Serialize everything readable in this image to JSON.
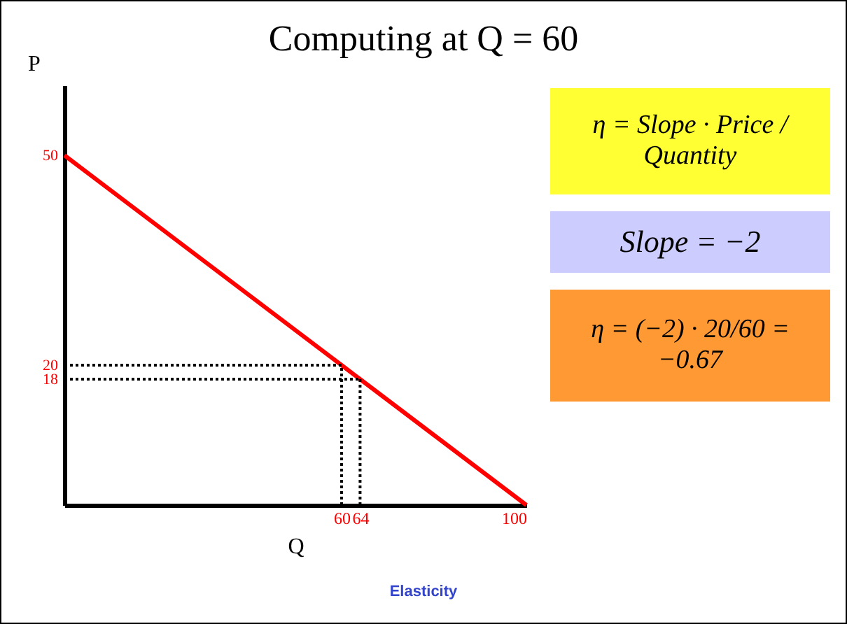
{
  "chart_data": {
    "type": "line",
    "title": "Computing at Q = 60",
    "xlabel": "Q",
    "ylabel": "P",
    "x": [
      0,
      60,
      64,
      100
    ],
    "series": [
      {
        "color": "#ff0000",
        "values": [
          50,
          20,
          18,
          0
        ]
      }
    ],
    "xlim": [
      0,
      100
    ],
    "ylim": [
      0,
      60
    ],
    "xticks": [
      60,
      64,
      100
    ],
    "yticks": [
      18,
      20,
      50
    ],
    "ref_lines": [
      {
        "axis": "y",
        "value": 20,
        "line_style": "dotted",
        "color": "#000000"
      },
      {
        "axis": "y",
        "value": 18,
        "line_style": "dotted",
        "color": "#000000"
      },
      {
        "axis": "x",
        "value": 60,
        "line_style": "dotted",
        "color": "#000000"
      },
      {
        "axis": "x",
        "value": 64,
        "line_style": "dotted",
        "color": "#000000"
      }
    ],
    "annotations": [
      "η = Slope · Price / Quantity",
      "Slope = −2",
      "η = (−2) · 20/60 = −0.67",
      "Elasticity"
    ]
  }
}
